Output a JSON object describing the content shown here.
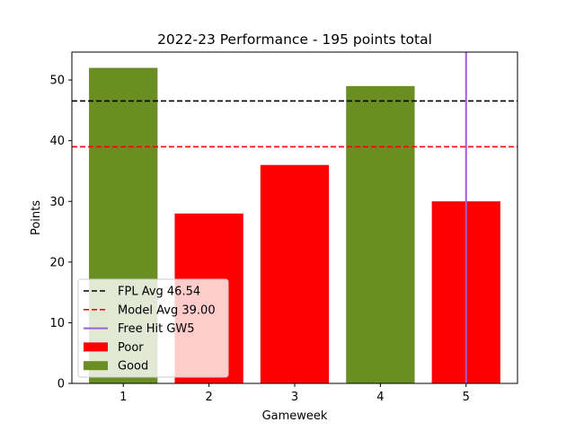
{
  "chart_data": {
    "type": "bar",
    "title": "2022-23 Performance - 195 points total",
    "xlabel": "Gameweek",
    "ylabel": "Points",
    "categories": [
      "1",
      "2",
      "3",
      "4",
      "5"
    ],
    "values": [
      52,
      28,
      36,
      49,
      30
    ],
    "bar_classes": [
      "Good",
      "Poor",
      "Poor",
      "Good",
      "Poor"
    ],
    "class_colors": {
      "Good": "#6b8e23",
      "Poor": "#ff0000"
    },
    "yticks": [
      0,
      10,
      20,
      30,
      40,
      50
    ],
    "ylim": [
      0,
      54.6
    ],
    "xlim": [
      0.4,
      5.6
    ],
    "reference_lines": [
      {
        "label": "FPL Avg 46.54",
        "orientation": "horizontal",
        "value": 46.54,
        "color": "#000000",
        "style": "dashed"
      },
      {
        "label": "Model Avg 39.00",
        "orientation": "horizontal",
        "value": 39.0,
        "color": "#ff0000",
        "style": "dashed"
      },
      {
        "label": "Free Hit GW5",
        "orientation": "vertical",
        "value": 5,
        "color": "#9e5ed6",
        "style": "solid"
      }
    ],
    "legend": {
      "placement": "lower-left",
      "entries": [
        {
          "label": "FPL Avg 46.54",
          "kind": "dashed-line",
          "color": "#000000"
        },
        {
          "label": "Model Avg 39.00",
          "kind": "dashed-line",
          "color": "#ff0000"
        },
        {
          "label": "Free Hit GW5",
          "kind": "line",
          "color": "#9e5ed6"
        },
        {
          "label": "Poor",
          "kind": "patch",
          "color": "#ff0000"
        },
        {
          "label": "Good",
          "kind": "patch",
          "color": "#6b8e23"
        }
      ]
    },
    "grid": false
  }
}
